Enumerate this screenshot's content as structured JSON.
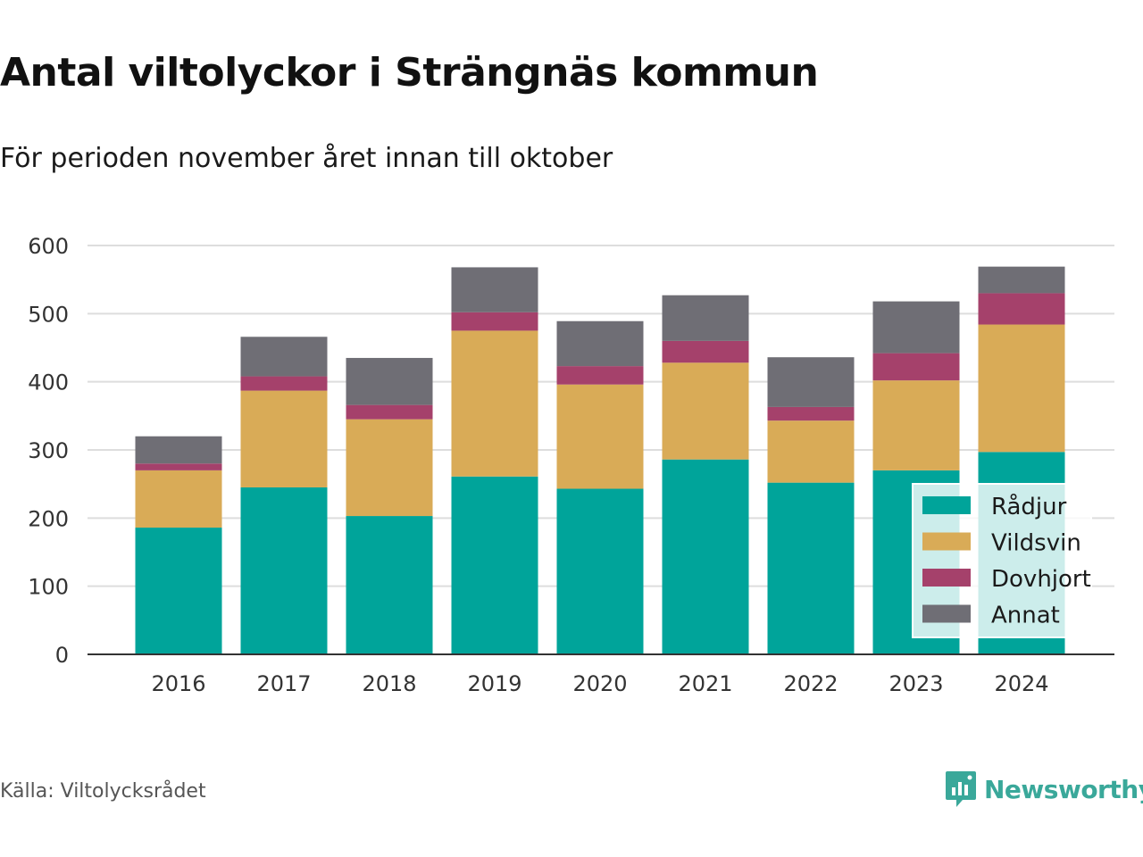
{
  "title": "Antal viltolyckor i Strängnäs kommun",
  "subtitle": "För perioden november året innan till oktober",
  "source": "Källa: Viltolycksrådet",
  "brand": {
    "name": "Newsworthy",
    "color": "#3aa89a",
    "icon": "newsworthy-logo-icon"
  },
  "chart_data": {
    "type": "bar",
    "stacked": true,
    "categories": [
      "2016",
      "2017",
      "2018",
      "2019",
      "2020",
      "2021",
      "2022",
      "2023",
      "2024"
    ],
    "series": [
      {
        "name": "Rådjur",
        "color": "#00a49a",
        "values": [
          186,
          245,
          203,
          261,
          243,
          286,
          252,
          270,
          297
        ]
      },
      {
        "name": "Vildsvin",
        "color": "#d9ab57",
        "values": [
          84,
          142,
          142,
          214,
          153,
          142,
          91,
          132,
          187
        ]
      },
      {
        "name": "Dovhjort",
        "color": "#a5416b",
        "values": [
          10,
          21,
          21,
          27,
          27,
          32,
          20,
          40,
          46
        ]
      },
      {
        "name": "Annat",
        "color": "#6f6e75",
        "values": [
          40,
          58,
          69,
          66,
          66,
          67,
          73,
          76,
          39
        ]
      }
    ],
    "ylim": [
      0,
      600
    ],
    "yticks": [
      0,
      100,
      200,
      300,
      400,
      500,
      600
    ],
    "xlabel": "",
    "ylabel": "",
    "grid": true,
    "legend": "bottom-right"
  }
}
